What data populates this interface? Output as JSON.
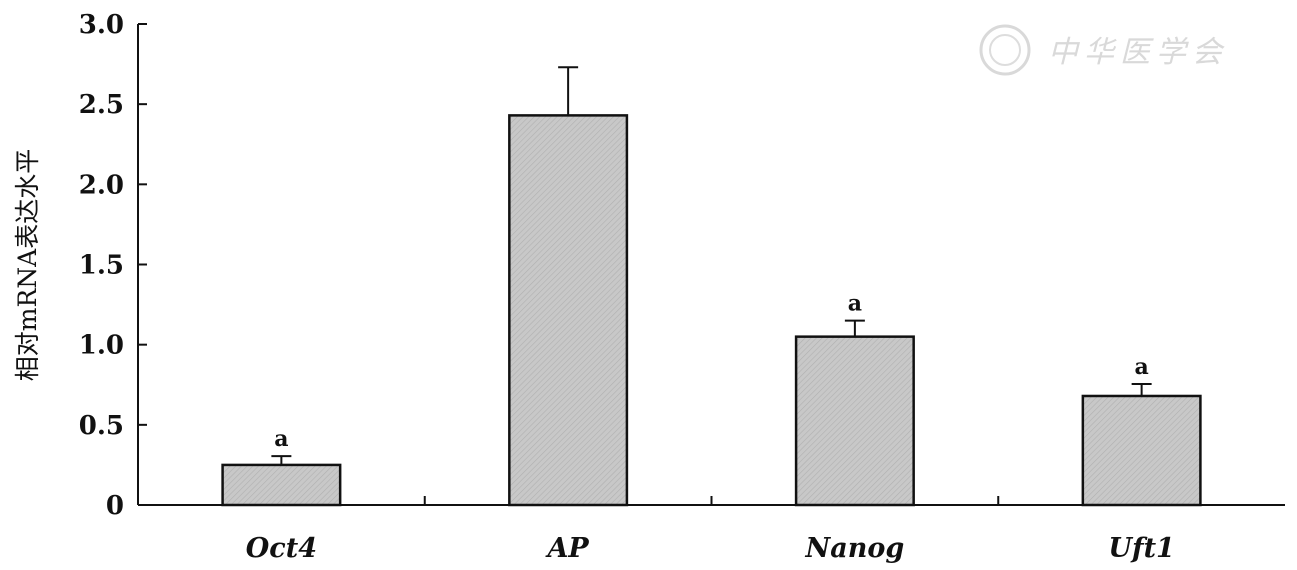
{
  "chart_data": {
    "type": "bar",
    "categories": [
      "Oct4",
      "AP",
      "Nanog",
      "Uft1"
    ],
    "values": [
      0.25,
      2.43,
      1.05,
      0.68
    ],
    "error": [
      0.055,
      0.3,
      0.1,
      0.075
    ],
    "significance": [
      "a",
      "",
      "a",
      "a"
    ],
    "yticks": [
      0,
      0.5,
      1.0,
      1.5,
      2.0,
      2.5,
      3.0
    ],
    "ytick_labels": [
      "0",
      "0.5",
      "1.0",
      "1.5",
      "2.0",
      "2.5",
      "3.0"
    ],
    "ylim": [
      0,
      3.0
    ],
    "ylabel": "相对mRNA表达水平",
    "xlabel": "",
    "bar_color": "#c8c8c8",
    "grid": false
  },
  "watermark": {
    "text": "中华医学会"
  }
}
